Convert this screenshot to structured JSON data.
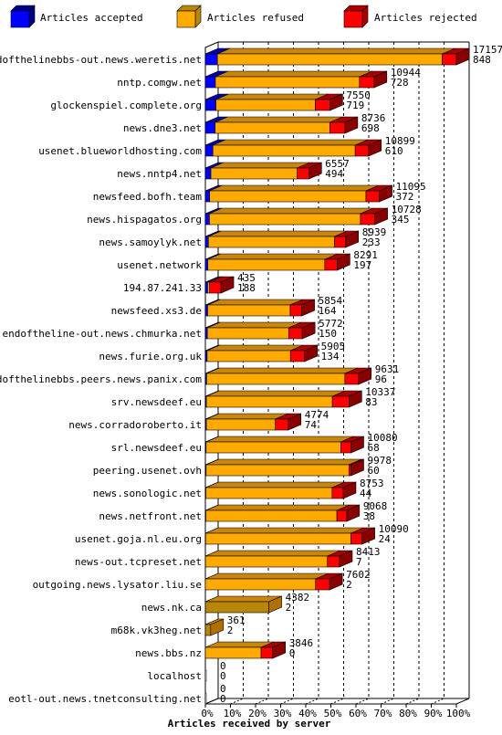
{
  "chart_data": {
    "type": "bar",
    "orientation": "horizontal",
    "stacked": true,
    "xlabel": "Articles received by server",
    "xlim": [
      0,
      100
    ],
    "x_unit": "%",
    "x_ticks": [
      "0%",
      "10%",
      "20%",
      "30%",
      "40%",
      "50%",
      "60%",
      "70%",
      "80%",
      "90%",
      "100%"
    ],
    "grid": true,
    "legend_position": "top",
    "legend": [
      {
        "name": "Articles accepted",
        "color": "#0000ff"
      },
      {
        "name": "Articles refused",
        "color": "#ffaa00"
      },
      {
        "name": "Articles rejected",
        "color": "#ff0000"
      }
    ],
    "categories": [
      "endofthelinebbs-out.news.weretis.net",
      "nntp.comgw.net",
      "glockenspiel.complete.org",
      "news.dne3.net",
      "usenet.blueworldhosting.com",
      "news.nntp4.net",
      "newsfeed.bofh.team",
      "news.hispagatos.org",
      "news.samoylyk.net",
      "usenet.network",
      "194.87.241.33",
      "newsfeed.xs3.de",
      "endoftheline-out.news.chmurka.net",
      "news.furie.org.uk",
      "endofthelinebbs.peers.news.panix.com",
      "srv.newsdeef.eu",
      "news.corradoroberto.it",
      "srl.newsdeef.eu",
      "peering.usenet.ovh",
      "news.sonologic.net",
      "news.netfront.net",
      "usenet.goja.nl.eu.org",
      "news-out.tcpreset.net",
      "outgoing.news.lysator.liu.se",
      "news.nk.ca",
      "m68k.vk3heg.net",
      "news.bbs.nz",
      "localhost",
      "eotl-out.news.tnetconsulting.net"
    ],
    "label_top": [
      "17157",
      "10944",
      "7550",
      "8736",
      "10899",
      "6557",
      "11095",
      "10728",
      "8939",
      "8291",
      "435",
      "5854",
      "5772",
      "5905",
      "9631",
      "10337",
      "4774",
      "10080",
      "9978",
      "8753",
      "9068",
      "10090",
      "8413",
      "7602",
      "4382",
      "361",
      "3846",
      "0",
      "0"
    ],
    "label_bottom": [
      "848",
      "728",
      "719",
      "698",
      "610",
      "494",
      "372",
      "345",
      "233",
      "197",
      "188",
      "164",
      "150",
      "134",
      "96",
      "83",
      "74",
      "68",
      "60",
      "44",
      "38",
      "24",
      "7",
      "2",
      "2",
      "2",
      "0",
      "0",
      "0"
    ],
    "series": [
      {
        "name": "Articles accepted",
        "values": [
          4.8,
          4.0,
          4.2,
          3.9,
          3.0,
          2.2,
          1.7,
          1.6,
          1.2,
          1.0,
          0.9,
          0.9,
          0.8,
          0.7,
          0.5,
          0.4,
          0.4,
          0.3,
          0.3,
          0.2,
          0.2,
          0.1,
          0.04,
          0.01,
          0.01,
          0.01,
          0,
          0,
          0
        ]
      },
      {
        "name": "Articles refused",
        "values": [
          89.6,
          57.4,
          39.6,
          45.7,
          56.7,
          34.4,
          62.3,
          60.2,
          50.3,
          46.6,
          0.8,
          32.9,
          32.4,
          33.2,
          55.1,
          50.2,
          27.5,
          53.7,
          56.9,
          50.3,
          52.2,
          57.9,
          48.6,
          43.9,
          25.3,
          2.1,
          22.2,
          0,
          0
        ]
      },
      {
        "name": "Articles rejected",
        "values": [
          5.6,
          5.8,
          5.8,
          6.0,
          5.3,
          4.6,
          5.3,
          5.7,
          4.4,
          4.9,
          4.5,
          4.6,
          5.4,
          5.6,
          5.4,
          6.6,
          5.1,
          4.0,
          0.8,
          4.4,
          3.9,
          4.4,
          4.8,
          5.6,
          0,
          0,
          4.6,
          0,
          0
        ]
      }
    ]
  }
}
